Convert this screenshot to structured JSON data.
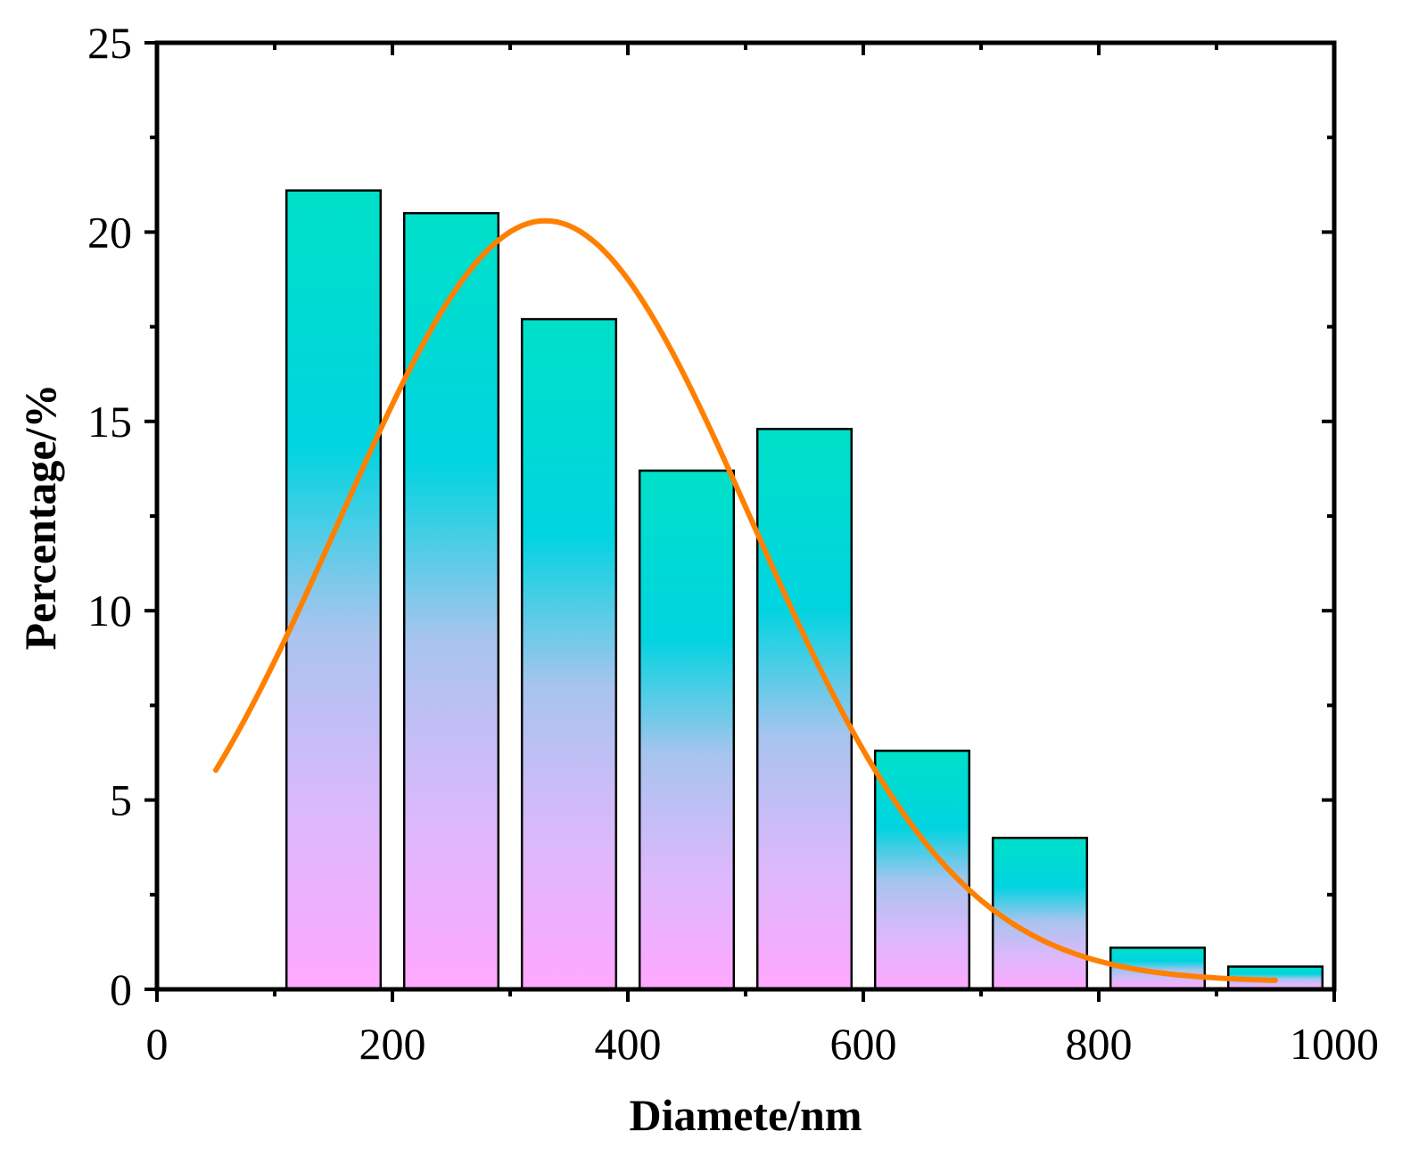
{
  "chart_data": {
    "type": "bar",
    "title": "",
    "xlabel": "Diamete/nm",
    "ylabel": "Percentage/%",
    "xlim": [
      0,
      1000
    ],
    "ylim": [
      0,
      25
    ],
    "xticks": [
      "0",
      "200",
      "400",
      "600",
      "800",
      "1000"
    ],
    "yticks": [
      "0",
      "5",
      "10",
      "15",
      "20",
      "25"
    ],
    "bars": [
      {
        "x_start": 110,
        "x_end": 190,
        "value": 21.1
      },
      {
        "x_start": 210,
        "x_end": 290,
        "value": 20.5
      },
      {
        "x_start": 310,
        "x_end": 390,
        "value": 17.7
      },
      {
        "x_start": 410,
        "x_end": 490,
        "value": 13.7
      },
      {
        "x_start": 510,
        "x_end": 590,
        "value": 14.8
      },
      {
        "x_start": 610,
        "x_end": 690,
        "value": 6.3
      },
      {
        "x_start": 710,
        "x_end": 790,
        "value": 4.0
      },
      {
        "x_start": 810,
        "x_end": 890,
        "value": 1.1
      },
      {
        "x_start": 910,
        "x_end": 990,
        "value": 0.6
      }
    ],
    "fit_curve": {
      "type": "gaussian",
      "x_range": [
        50,
        950
      ],
      "peak_x": 330,
      "peak_y": 20.3,
      "sigma": 175,
      "baseline": 0.2
    },
    "colors": {
      "bar_top": "#00e0c8",
      "bar_mid": "#00d4e0",
      "bar_bottom": "#ffa8ff",
      "bar_edge": "#000000",
      "curve": "#ff8000",
      "axis": "#000000"
    }
  }
}
